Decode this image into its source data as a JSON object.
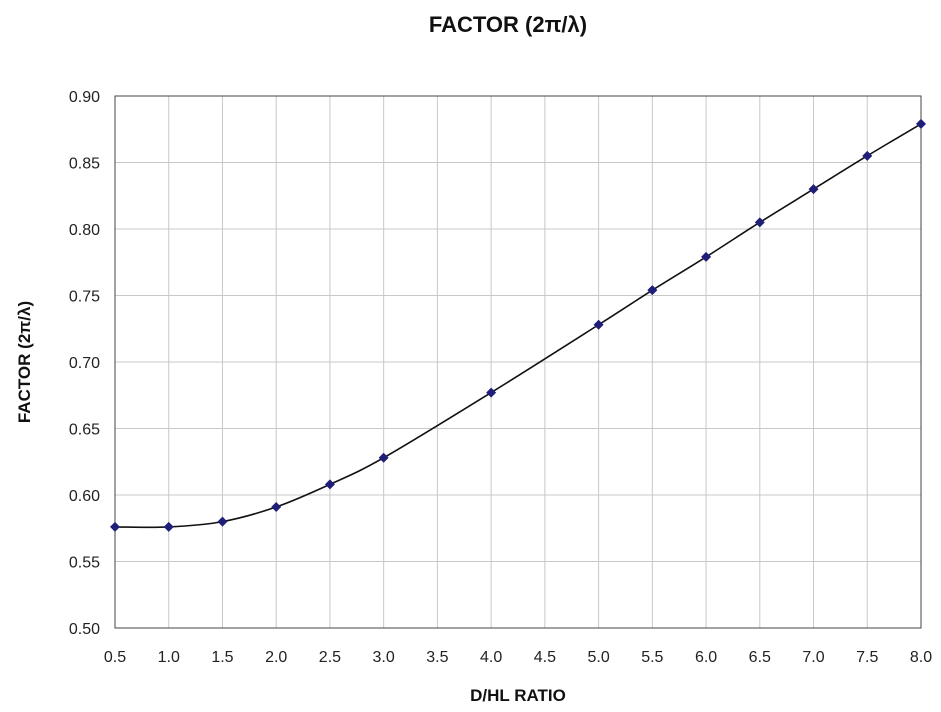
{
  "chart_data": {
    "type": "line",
    "title": "FACTOR  (2π/λ)",
    "xlabel": "D/HL  RATIO",
    "ylabel": "FACTOR  (2π/λ)",
    "xlim": [
      0.5,
      8.0
    ],
    "ylim": [
      0.5,
      0.9
    ],
    "x_ticks": [
      "0.5",
      "1.0",
      "1.5",
      "2.0",
      "2.5",
      "3.0",
      "3.5",
      "4.0",
      "4.5",
      "5.0",
      "5.5",
      "6.0",
      "6.5",
      "7.0",
      "7.5",
      "8.0"
    ],
    "y_ticks": [
      "0.90",
      "0.85",
      "0.80",
      "0.75",
      "0.70",
      "0.65",
      "0.60",
      "0.55",
      "0.50"
    ],
    "grid": true,
    "legend": "none",
    "marker_color": "#1f1f7a",
    "line_color": "#111111",
    "series": [
      {
        "x": [
          0.5,
          1.0,
          1.5,
          2.0,
          2.5,
          3.0,
          4.0,
          5.0,
          5.5,
          6.0,
          6.5,
          7.0,
          7.5,
          8.0
        ],
        "y": [
          0.576,
          0.576,
          0.58,
          0.591,
          0.608,
          0.628,
          0.677,
          0.728,
          0.754,
          0.779,
          0.805,
          0.83,
          0.855,
          0.879
        ]
      }
    ]
  }
}
